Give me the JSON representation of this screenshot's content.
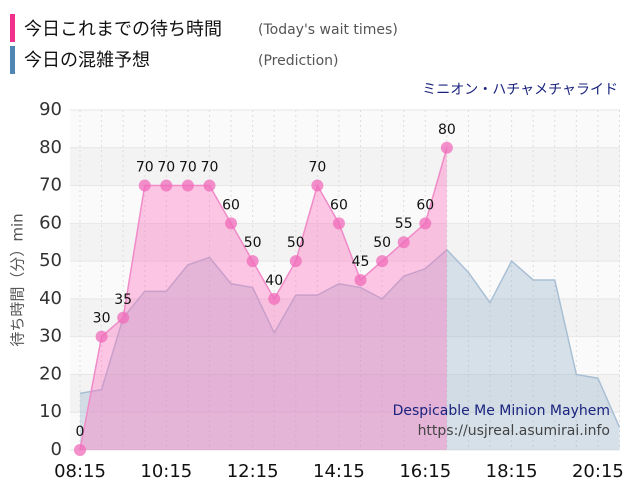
{
  "chart_data": {
    "type": "area",
    "subtitle": "ミニオン・ハチャメチャライド",
    "y_label": "待ち時間（分）min",
    "annotations": [
      "Despicable Me Minion Mayhem",
      "https://usjreal.asumirai.info"
    ],
    "categories": [
      "08:15",
      null,
      null,
      null,
      "10:15",
      null,
      null,
      null,
      "12:15",
      null,
      null,
      null,
      "14:15",
      null,
      null,
      null,
      "16:15",
      null,
      null,
      null,
      "18:15",
      null,
      null,
      null,
      "20:15",
      null
    ],
    "series": [
      {
        "name": "今日これまでの待ち時間",
        "note": "(Today's wait times)",
        "color": "#f06bb9",
        "values": [
          0,
          30,
          35,
          70,
          70,
          70,
          70,
          60,
          50,
          40,
          50,
          70,
          60,
          45,
          50,
          55,
          60,
          80,
          null,
          null,
          null,
          null,
          null,
          null,
          null,
          null
        ]
      },
      {
        "name": "今日の混雑予想",
        "note": "(Prediction)",
        "color": "#4f86b3",
        "values": [
          15,
          16,
          35,
          42,
          42,
          49,
          51,
          44,
          43,
          31,
          41,
          41,
          44,
          43,
          40,
          46,
          48,
          53,
          47,
          39,
          50,
          45,
          45,
          20,
          19,
          6
        ]
      }
    ],
    "ylim": [
      0,
      90
    ],
    "yticks": [
      0,
      10,
      20,
      30,
      40,
      50,
      60,
      70,
      80,
      90
    ],
    "grid": true
  }
}
